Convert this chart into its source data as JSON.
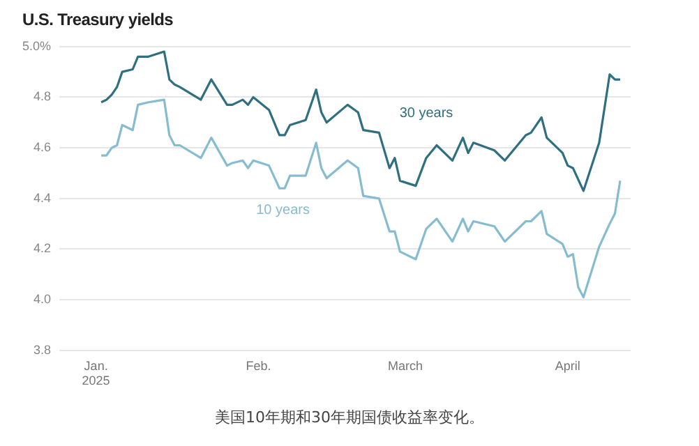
{
  "chart_data": {
    "type": "line",
    "title": "U.S. Treasury yields",
    "annotations": [
      "美国10年期和30年期国债收益率变化。"
    ],
    "xlim": [
      "2024-12-25",
      "2025-04-13"
    ],
    "xticks": [
      {
        "value": "2025-01-01",
        "label": "Jan.\n2025"
      },
      {
        "value": "2025-02-01",
        "label": "Feb."
      },
      {
        "value": "2025-03-01",
        "label": "March"
      },
      {
        "value": "2025-04-01",
        "label": "April"
      }
    ],
    "ylim": [
      3.8,
      5.0
    ],
    "yticks": [
      {
        "value": 3.8,
        "label": "3.8"
      },
      {
        "value": 4.0,
        "label": "4.0"
      },
      {
        "value": 4.2,
        "label": "4.2"
      },
      {
        "value": 4.4,
        "label": "4.4"
      },
      {
        "value": 4.6,
        "label": "4.6"
      },
      {
        "value": 4.8,
        "label": "4.8"
      },
      {
        "value": 5.0,
        "label": "5.0%"
      }
    ],
    "grid": "y",
    "legend": false,
    "marker": "none",
    "line_style": "solid",
    "series": [
      {
        "name": "30 years",
        "color": "#2e6f80",
        "x": [
          "2025-01-02",
          "2025-01-03",
          "2025-01-04",
          "2025-01-05",
          "2025-01-06",
          "2025-01-08",
          "2025-01-09",
          "2025-01-11",
          "2025-01-14",
          "2025-01-15",
          "2025-01-16",
          "2025-01-17",
          "2025-01-21",
          "2025-01-23",
          "2025-01-26",
          "2025-01-27",
          "2025-01-29",
          "2025-01-30",
          "2025-01-31",
          "2025-02-03",
          "2025-02-05",
          "2025-02-06",
          "2025-02-07",
          "2025-02-10",
          "2025-02-12",
          "2025-02-13",
          "2025-02-14",
          "2025-02-18",
          "2025-02-20",
          "2025-02-21",
          "2025-02-24",
          "2025-02-26",
          "2025-02-27",
          "2025-02-28",
          "2025-03-03",
          "2025-03-05",
          "2025-03-07",
          "2025-03-10",
          "2025-03-12",
          "2025-03-13",
          "2025-03-14",
          "2025-03-18",
          "2025-03-20",
          "2025-03-24",
          "2025-03-25",
          "2025-03-27",
          "2025-03-28",
          "2025-03-31",
          "2025-04-01",
          "2025-04-02",
          "2025-04-04",
          "2025-04-07",
          "2025-04-09",
          "2025-04-10",
          "2025-04-11"
        ],
        "values": [
          4.78,
          4.79,
          4.81,
          4.84,
          4.9,
          4.91,
          4.96,
          4.96,
          4.98,
          4.87,
          4.85,
          4.84,
          4.79,
          4.87,
          4.77,
          4.77,
          4.79,
          4.77,
          4.8,
          4.75,
          4.65,
          4.65,
          4.69,
          4.71,
          4.83,
          4.74,
          4.7,
          4.77,
          4.74,
          4.67,
          4.66,
          4.52,
          4.56,
          4.47,
          4.45,
          4.56,
          4.61,
          4.55,
          4.64,
          4.58,
          4.62,
          4.59,
          4.55,
          4.65,
          4.66,
          4.72,
          4.64,
          4.58,
          4.53,
          4.52,
          4.43,
          4.62,
          4.89,
          4.87,
          4.87
        ]
      },
      {
        "name": "10 years",
        "color": "#86bcd0",
        "x": [
          "2025-01-02",
          "2025-01-03",
          "2025-01-04",
          "2025-01-05",
          "2025-01-06",
          "2025-01-08",
          "2025-01-09",
          "2025-01-11",
          "2025-01-14",
          "2025-01-15",
          "2025-01-16",
          "2025-01-17",
          "2025-01-21",
          "2025-01-23",
          "2025-01-26",
          "2025-01-27",
          "2025-01-29",
          "2025-01-30",
          "2025-01-31",
          "2025-02-03",
          "2025-02-05",
          "2025-02-06",
          "2025-02-07",
          "2025-02-10",
          "2025-02-12",
          "2025-02-13",
          "2025-02-14",
          "2025-02-18",
          "2025-02-20",
          "2025-02-21",
          "2025-02-24",
          "2025-02-26",
          "2025-02-27",
          "2025-02-28",
          "2025-03-03",
          "2025-03-05",
          "2025-03-07",
          "2025-03-10",
          "2025-03-12",
          "2025-03-13",
          "2025-03-14",
          "2025-03-18",
          "2025-03-20",
          "2025-03-24",
          "2025-03-25",
          "2025-03-27",
          "2025-03-28",
          "2025-03-31",
          "2025-04-01",
          "2025-04-02",
          "2025-04-03",
          "2025-04-04",
          "2025-04-07",
          "2025-04-09",
          "2025-04-10",
          "2025-04-11"
        ],
        "values": [
          4.57,
          4.57,
          4.6,
          4.61,
          4.69,
          4.67,
          4.77,
          4.78,
          4.79,
          4.65,
          4.61,
          4.61,
          4.56,
          4.64,
          4.53,
          4.54,
          4.55,
          4.52,
          4.55,
          4.53,
          4.44,
          4.44,
          4.49,
          4.49,
          4.62,
          4.52,
          4.48,
          4.55,
          4.52,
          4.41,
          4.4,
          4.27,
          4.27,
          4.19,
          4.16,
          4.28,
          4.32,
          4.23,
          4.32,
          4.27,
          4.31,
          4.29,
          4.23,
          4.31,
          4.31,
          4.35,
          4.26,
          4.22,
          4.17,
          4.18,
          4.05,
          4.01,
          4.21,
          4.3,
          4.34,
          4.47
        ]
      }
    ]
  }
}
